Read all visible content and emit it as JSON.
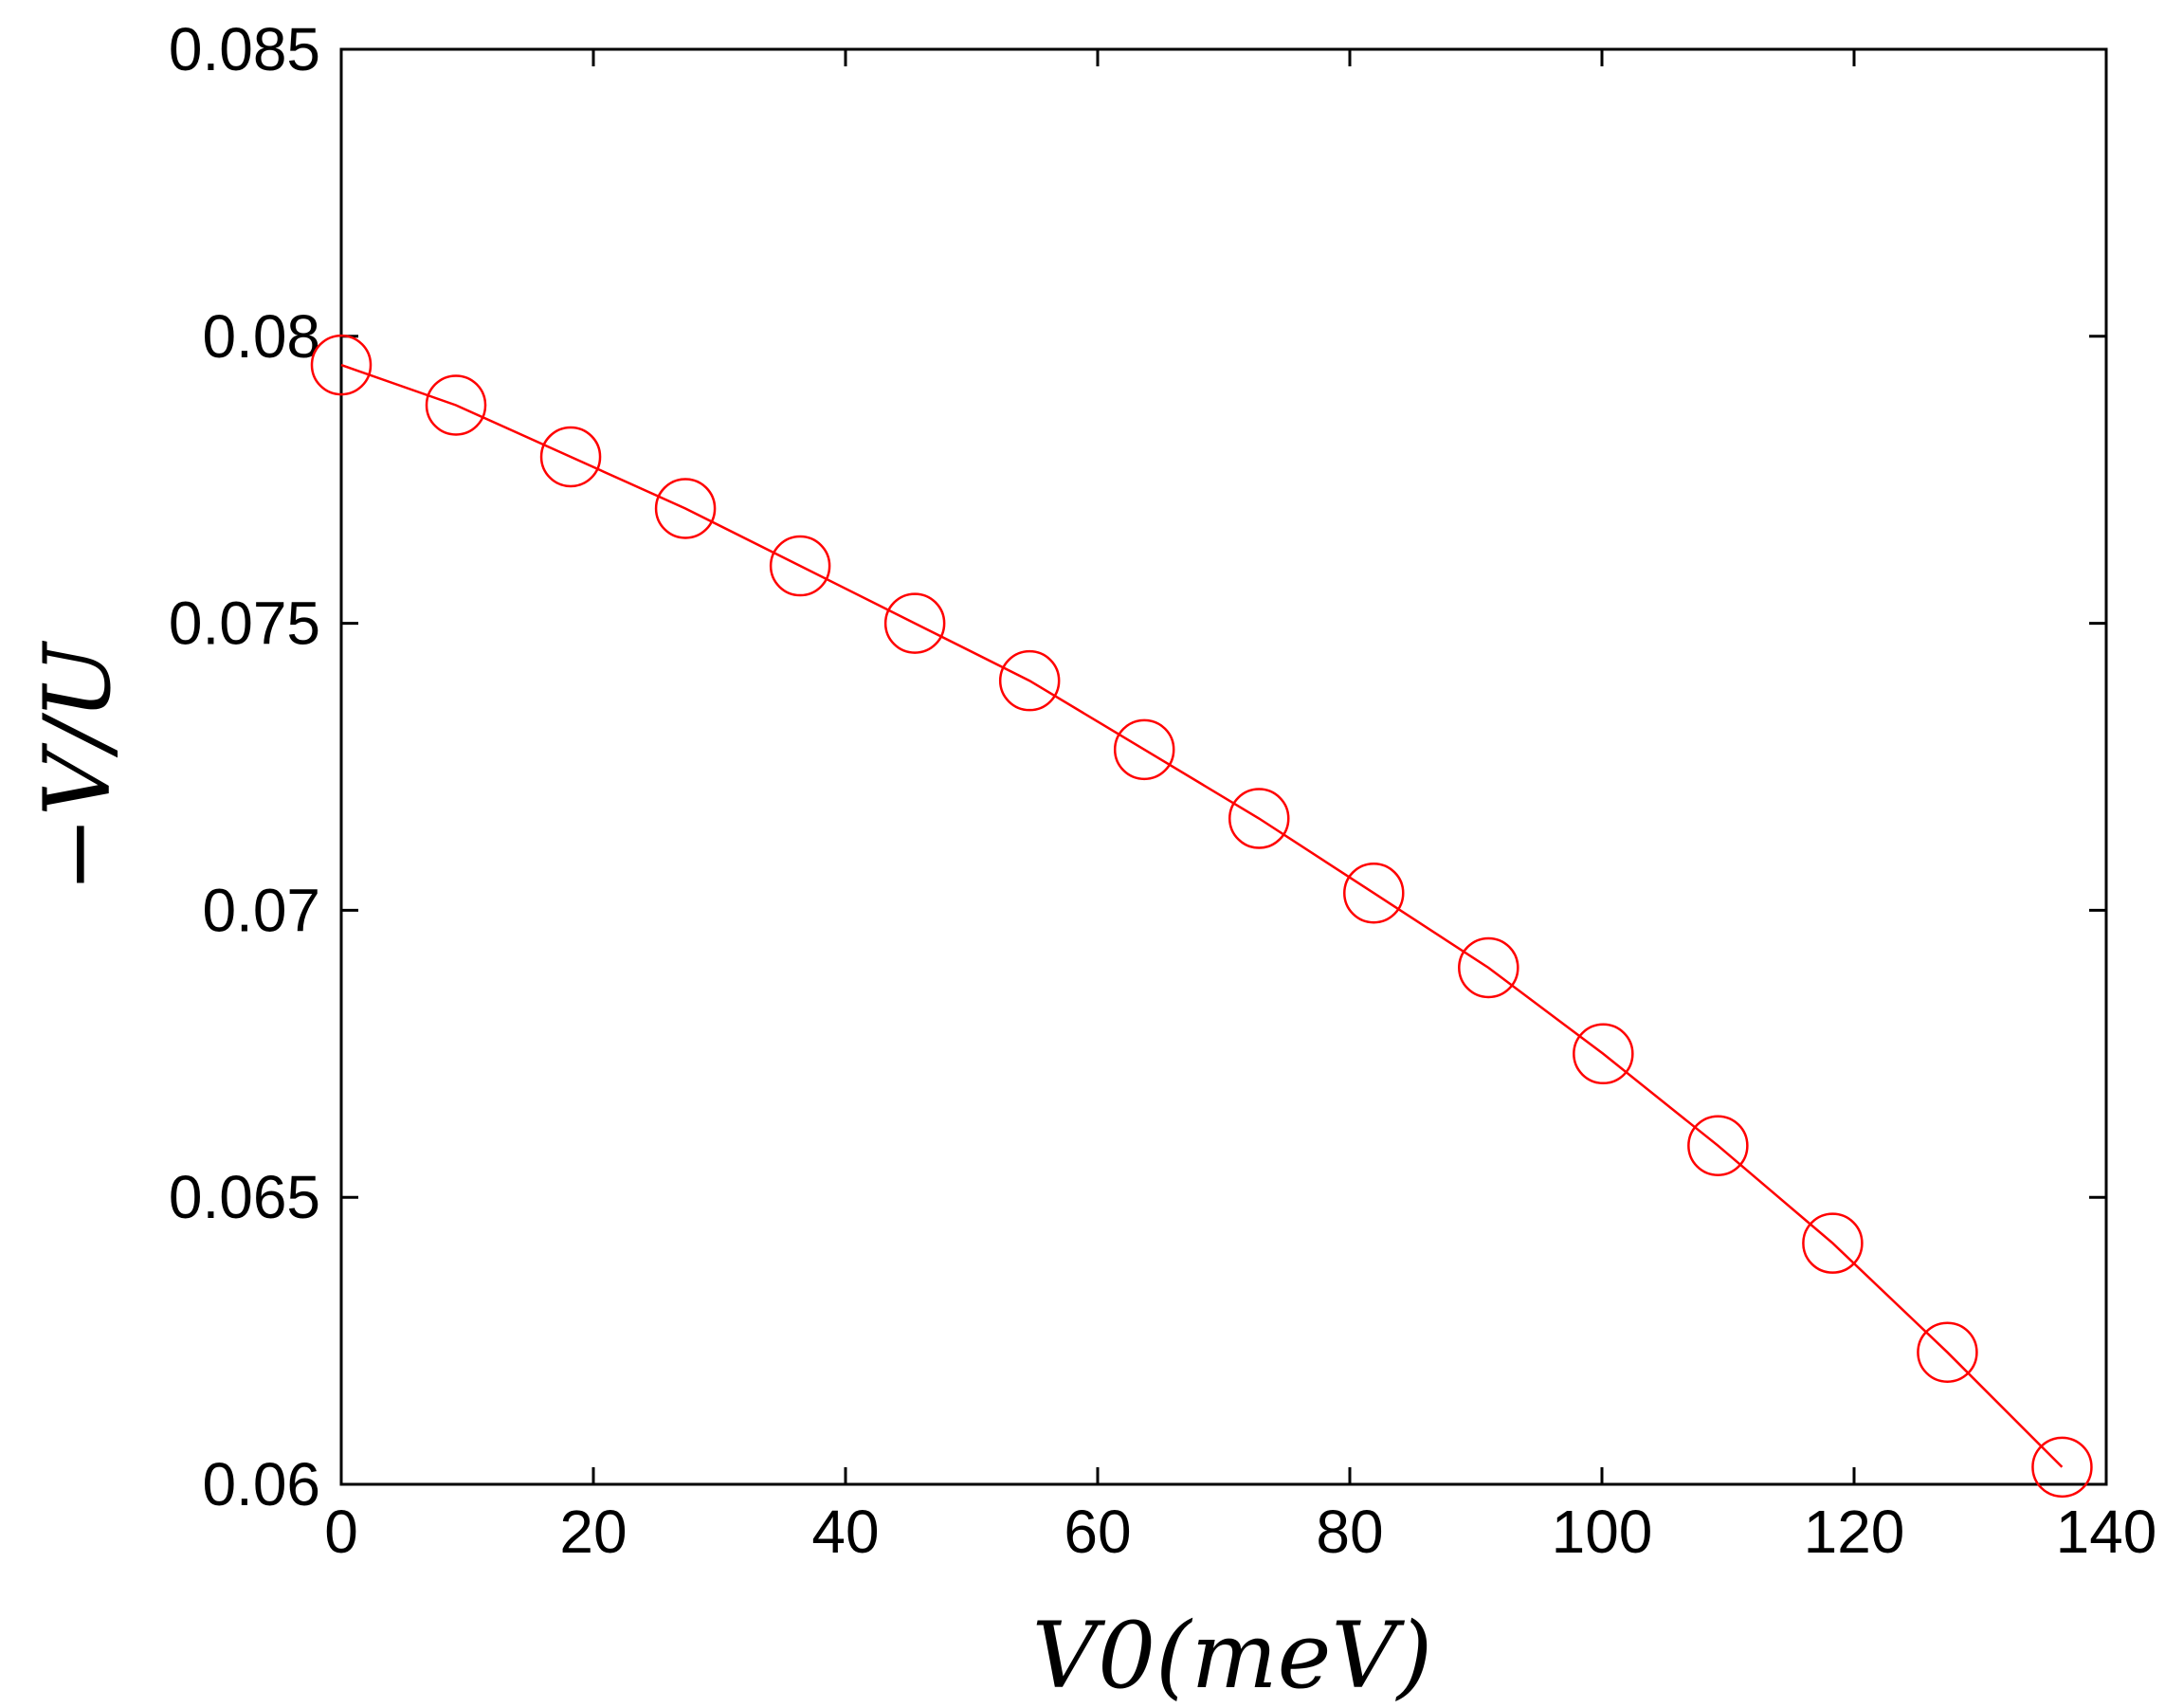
{
  "colors": {
    "series": "#ff0000",
    "axes": "#000000",
    "background": "#ffffff"
  },
  "chart_data": {
    "type": "line",
    "title": "",
    "xlabel": "V0(meV)",
    "ylabel": "−V/U",
    "xlim": [
      0,
      140
    ],
    "ylim": [
      0.06,
      0.085
    ],
    "grid": false,
    "marker": "open-circle",
    "x_ticks": [
      0,
      20,
      40,
      60,
      80,
      100,
      120,
      140
    ],
    "x_tick_labels": [
      "0",
      "20",
      "40",
      "60",
      "80",
      "100",
      "120",
      "140"
    ],
    "y_ticks": [
      0.06,
      0.065,
      0.07,
      0.075,
      0.08,
      0.085
    ],
    "y_tick_labels": [
      "0.06",
      "0.065",
      "0.07",
      "0.075",
      "0.08",
      "0.085"
    ],
    "series": [
      {
        "x": [
          0,
          9.1,
          18.2,
          27.3,
          36.4,
          45.5,
          54.6,
          63.7,
          72.8,
          81.9,
          91.0,
          100.1,
          109.2,
          118.3,
          127.4,
          136.5
        ],
        "y": [
          0.0795,
          0.0788,
          0.0779,
          0.077,
          0.076,
          0.075,
          0.074,
          0.0728,
          0.0716,
          0.0703,
          0.069,
          0.0675,
          0.0659,
          0.0642,
          0.0623,
          0.0603
        ]
      }
    ]
  }
}
